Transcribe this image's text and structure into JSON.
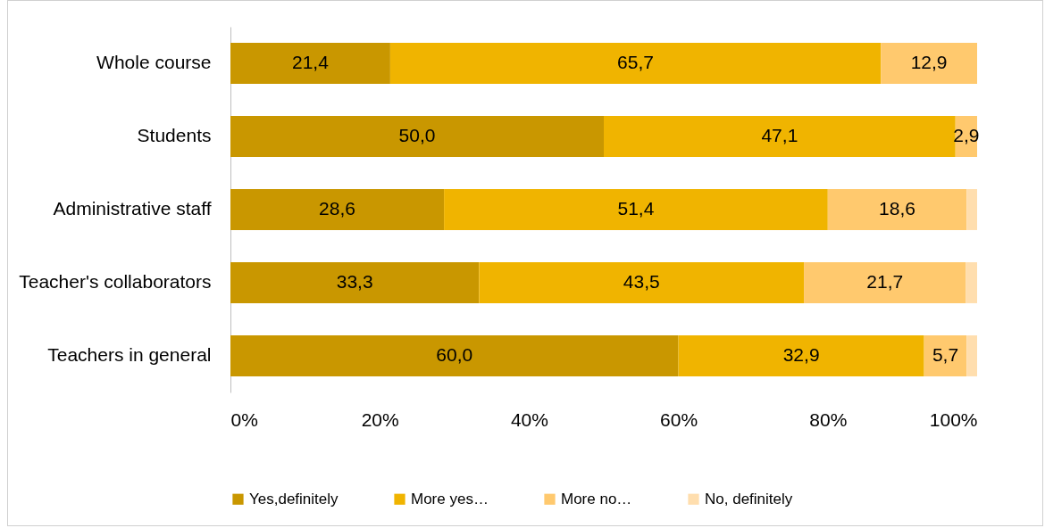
{
  "chart_data": {
    "type": "bar",
    "orientation": "horizontal",
    "stacked": true,
    "categories": [
      "Whole course",
      "Students",
      "Administrative staff",
      "Teacher's collaborators",
      "Teachers in general"
    ],
    "series": [
      {
        "name": "Yes,definitely",
        "color": "#c99700",
        "values": [
          21.4,
          50.0,
          28.6,
          33.3,
          60.0
        ],
        "value_labels": [
          "21,4",
          "50,0",
          "28,6",
          "33,3",
          "60,0"
        ]
      },
      {
        "name": "More yes…",
        "color": "#f0b400",
        "values": [
          65.7,
          47.1,
          51.4,
          43.5,
          32.9
        ],
        "value_labels": [
          "65,7",
          "47,1",
          "51,4",
          "43,5",
          "32,9"
        ]
      },
      {
        "name": "More no…",
        "color": "#ffc96e",
        "values": [
          12.9,
          2.9,
          18.6,
          21.7,
          5.7
        ],
        "value_labels": [
          "12,9",
          "2,9",
          "18,6",
          "21,7",
          "5,7"
        ]
      },
      {
        "name": "No, definitely",
        "color": "#ffdeae",
        "values": [
          0,
          0,
          1.4,
          1.5,
          1.4
        ],
        "value_labels": [
          null,
          null,
          null,
          null,
          null
        ]
      }
    ],
    "xlim": [
      0,
      100
    ],
    "xticks": [
      {
        "value": 0,
        "label": "0%"
      },
      {
        "value": 20,
        "label": "20%"
      },
      {
        "value": 40,
        "label": "40%"
      },
      {
        "value": 60,
        "label": "60%"
      },
      {
        "value": 80,
        "label": "80%"
      },
      {
        "value": 100,
        "label": "100%"
      }
    ],
    "grid": false,
    "legend": "bottom"
  }
}
